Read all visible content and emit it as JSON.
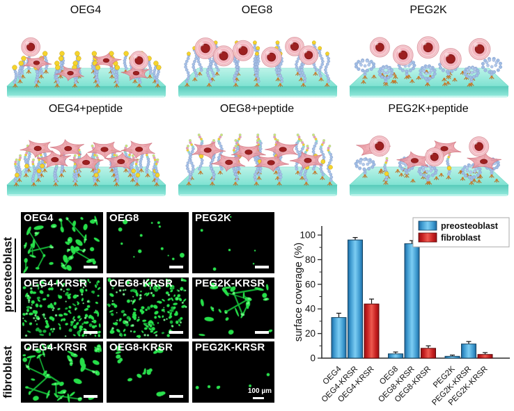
{
  "illustrations": {
    "panels": [
      {
        "label": "OEG4",
        "polymer": "short-brush",
        "tip": "yellow",
        "round_cells": 2,
        "spread_cells": 4
      },
      {
        "label": "OEG8",
        "polymer": "long-brush",
        "tip": "small-yellow",
        "round_cells": 6,
        "spread_cells": 0
      },
      {
        "label": "PEG2K",
        "polymer": "coil",
        "tip": "none",
        "round_cells": 5,
        "spread_cells": 0
      },
      {
        "label": "OEG4+peptide",
        "polymer": "short-brush",
        "tip": "peptide",
        "round_cells": 0,
        "spread_cells": 7
      },
      {
        "label": "OEG8+peptide",
        "polymer": "long-brush",
        "tip": "peptide",
        "round_cells": 0,
        "spread_cells": 6
      },
      {
        "label": "PEG2K+peptide",
        "polymer": "coil-peptide",
        "tip": "peptide",
        "round_cells": 3,
        "spread_cells": 4
      }
    ]
  },
  "microscopy": {
    "groups": [
      {
        "label": "preosteoblast"
      },
      {
        "label": "fibroblast"
      }
    ],
    "panels": [
      {
        "label": "OEG4",
        "cell_type": "preosteoblast",
        "pattern": "network-high"
      },
      {
        "label": "OEG8",
        "cell_type": "preosteoblast",
        "pattern": "dots-sparse"
      },
      {
        "label": "PEG2K",
        "cell_type": "preosteoblast",
        "pattern": "dots-rare"
      },
      {
        "label": "OEG4-KRSR",
        "cell_type": "preosteoblast",
        "pattern": "dense"
      },
      {
        "label": "OEG8-KRSR",
        "cell_type": "preosteoblast",
        "pattern": "dense"
      },
      {
        "label": "PEG2K-KRSR",
        "cell_type": "preosteoblast",
        "pattern": "network-medium"
      },
      {
        "label": "OEG4-KRSR",
        "cell_type": "fibroblast",
        "pattern": "network-high"
      },
      {
        "label": "OEG8-KRSR",
        "cell_type": "fibroblast",
        "pattern": "clusters"
      },
      {
        "label": "PEG2K-KRSR",
        "cell_type": "fibroblast",
        "pattern": "dots-rare"
      }
    ],
    "scale_bar_text": "100 µm"
  },
  "chart_data": {
    "type": "bar",
    "title": "",
    "ylabel": "surface coverage (%)",
    "ylim": [
      0,
      110
    ],
    "yticks": [
      0,
      20,
      40,
      60,
      80,
      100
    ],
    "minor_tick_step": 10,
    "legend": [
      "preosteoblast",
      "fibroblast"
    ],
    "legend_position": "top-right",
    "series_colors": {
      "preosteoblast": "#3f9bd0",
      "fibroblast": "#d42222"
    },
    "bars": [
      {
        "category": "OEG4",
        "series": "preosteoblast",
        "value": 33,
        "error": 3.5
      },
      {
        "category": "OEG4-KRSR",
        "series": "preosteoblast",
        "value": 96,
        "error": 2
      },
      {
        "category": "OEG4-KRSR",
        "series": "fibroblast",
        "value": 44,
        "error": 4
      },
      {
        "category": "OEG8",
        "series": "preosteoblast",
        "value": 3.5,
        "error": 1.5
      },
      {
        "category": "OEG8-KRSR",
        "series": "preosteoblast",
        "value": 93,
        "error": 2.5
      },
      {
        "category": "OEG8-KRSR",
        "series": "fibroblast",
        "value": 8,
        "error": 2
      },
      {
        "category": "PEG2K",
        "series": "preosteoblast",
        "value": 1.5,
        "error": 1
      },
      {
        "category": "PEG2K-KRSR",
        "series": "preosteoblast",
        "value": 11.5,
        "error": 2
      },
      {
        "category": "PEG2K-KRSR",
        "series": "fibroblast",
        "value": 3,
        "error": 1.5
      }
    ]
  }
}
